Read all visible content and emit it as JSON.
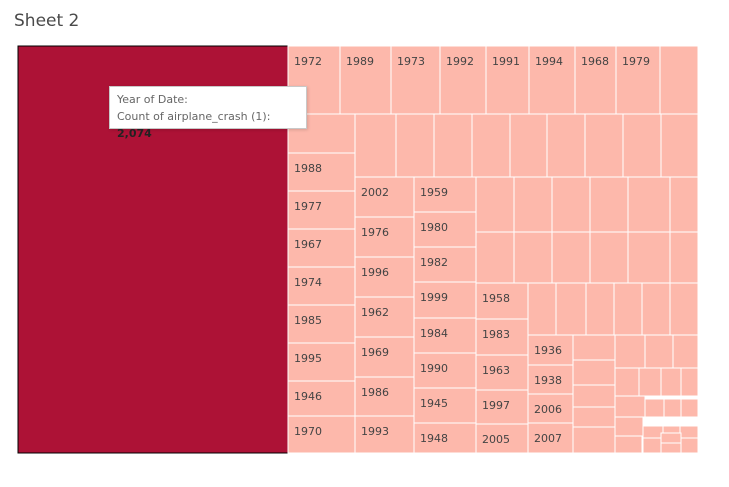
{
  "sheet": {
    "title": "Sheet 2"
  },
  "tooltip": {
    "line1": "Year of Date:",
    "line2_label": "Count of airplane_crash (1):",
    "line2_value": "2,074"
  },
  "colors": {
    "highlight": "#ad1236",
    "tile": "#fdb8ab",
    "text": "#444444"
  },
  "chart_data": {
    "type": "treemap",
    "title": "Sheet 2",
    "measure": "Count of airplane_crash (1)",
    "dimension": "Year of Date",
    "highlighted": {
      "year": "",
      "value": 2074
    },
    "visible_year_labels": [
      "1972",
      "1989",
      "1973",
      "1992",
      "1991",
      "1994",
      "1968",
      "1979",
      "1988",
      "1977",
      "1967",
      "1974",
      "1985",
      "1995",
      "1946",
      "1970",
      "2002",
      "1976",
      "1996",
      "1962",
      "1969",
      "1986",
      "1993",
      "1959",
      "1980",
      "1982",
      "1999",
      "1984",
      "1990",
      "1945",
      "1948",
      "1958",
      "1983",
      "1963",
      "1997",
      "2005",
      "1936",
      "1938",
      "2006",
      "2007"
    ]
  }
}
